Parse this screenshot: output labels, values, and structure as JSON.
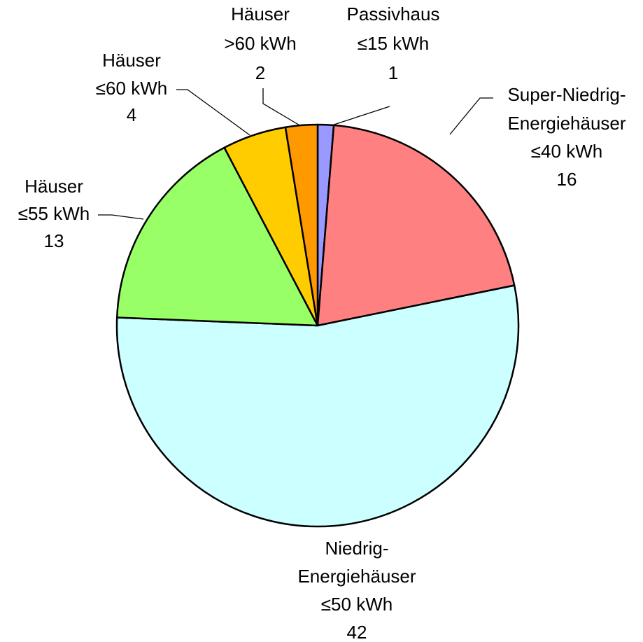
{
  "chart_data": {
    "type": "pie",
    "categories": [
      [
        "Passivhaus",
        "≤15 kWh"
      ],
      [
        "Super-Niedrig-",
        "Energiehäuser",
        "≤40 kWh"
      ],
      [
        "Niedrig-",
        "Energiehäuser",
        "≤50 kWh"
      ],
      [
        "Häuser",
        "≤55 kWh"
      ],
      [
        "Häuser",
        "≤60 kWh"
      ],
      [
        "Häuser",
        ">60 kWh"
      ]
    ],
    "values": [
      1,
      16,
      42,
      13,
      4,
      2
    ],
    "colors": [
      "#9999ff",
      "#ff8080",
      "#ccffff",
      "#99ff66",
      "#ffcc00",
      "#ff9900"
    ]
  }
}
